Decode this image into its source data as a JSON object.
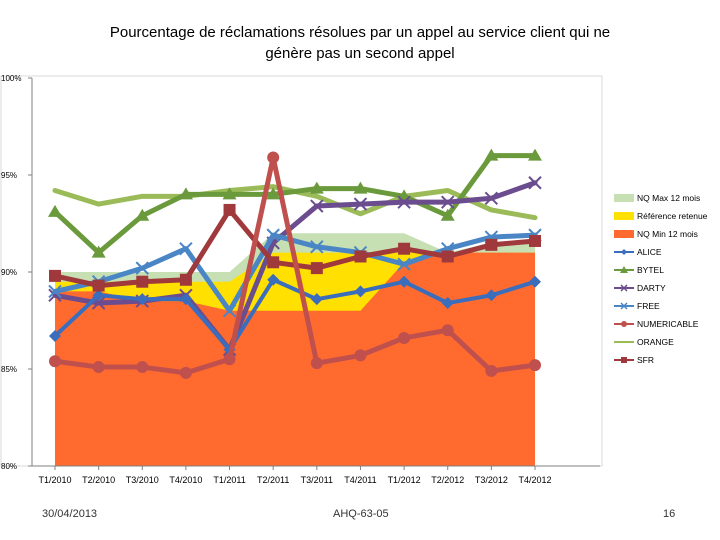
{
  "slide": {
    "footer_date": "30/04/2013",
    "footer_code": "AHQ-63-05",
    "page_number": "16"
  },
  "chart_data": {
    "type": "line",
    "title_line1": "Pourcentage de réclamations résolues par un appel au service client qui ne",
    "title_line2": "génère pas un second appel",
    "xlabel": "",
    "ylabel": "",
    "ylim": [
      80,
      100
    ],
    "y_ticks": [
      "80%",
      "85%",
      "90%",
      "95%",
      "100%"
    ],
    "y_tick_values": [
      80,
      85,
      90,
      95,
      100
    ],
    "categories": [
      "T1/2010",
      "T2/2010",
      "T3/2010",
      "T4/2010",
      "T1/2011",
      "T2/2011",
      "T3/2011",
      "T4/2011",
      "T1/2012",
      "T2/2012",
      "T3/2012",
      "T4/2012"
    ],
    "grid": false,
    "legend_position": "right",
    "areas": [
      {
        "name": "NQ Max 12 mois",
        "color": "#c6e0b4",
        "values": [
          90,
          90,
          90,
          90,
          90,
          92,
          92,
          92,
          92,
          91,
          91.5,
          91.5
        ]
      },
      {
        "name": "Référence retenue",
        "color": "#ffe000",
        "values": [
          89.5,
          89.5,
          89.5,
          89.5,
          89.5,
          91,
          91,
          91,
          91,
          91,
          91,
          91
        ]
      },
      {
        "name": "NQ Min 12 mois",
        "color": "#ff6a2f",
        "values": [
          89,
          89,
          88.5,
          88.5,
          88,
          88,
          88,
          88,
          90.5,
          91,
          91,
          91
        ]
      }
    ],
    "series": [
      {
        "name": "ALICE",
        "color": "#3a6ebd",
        "marker": "diamond",
        "values": [
          86.7,
          88.8,
          88.6,
          88.6,
          86.0,
          89.6,
          88.6,
          89.0,
          89.5,
          88.4,
          88.8,
          89.5
        ]
      },
      {
        "name": "BYTEL",
        "color": "#6a9a3c",
        "marker": "triangle",
        "values": [
          93.1,
          91.0,
          92.9,
          94.0,
          94.0,
          94.0,
          94.3,
          94.3,
          93.9,
          92.9,
          96.0,
          96.0
        ]
      },
      {
        "name": "DARTY",
        "color": "#6b4c8f",
        "marker": "x",
        "values": [
          88.8,
          88.4,
          88.5,
          88.8,
          86.0,
          91.5,
          93.4,
          93.5,
          93.6,
          93.6,
          93.8,
          94.6
        ]
      },
      {
        "name": "FREE",
        "color": "#4a86c5",
        "marker": "x",
        "values": [
          89.0,
          89.5,
          90.2,
          91.2,
          88.0,
          91.9,
          91.3,
          91.0,
          90.4,
          91.2,
          91.8,
          91.9
        ]
      },
      {
        "name": "NUMERICABLE",
        "color": "#c0504d",
        "marker": "circle",
        "values": [
          85.4,
          85.1,
          85.1,
          84.8,
          85.5,
          95.9,
          85.3,
          85.7,
          86.6,
          87.0,
          84.9,
          85.2
        ]
      },
      {
        "name": "ORANGE",
        "color": "#9bbb59",
        "marker": "none",
        "values": [
          94.2,
          93.5,
          93.9,
          93.9,
          94.2,
          94.4,
          93.9,
          93.0,
          93.9,
          94.2,
          93.2,
          92.8
        ]
      },
      {
        "name": "SFR",
        "color": "#a0393b",
        "marker": "square",
        "values": [
          89.8,
          89.3,
          89.5,
          89.6,
          93.2,
          90.5,
          90.2,
          90.8,
          91.2,
          90.8,
          91.4,
          91.6
        ]
      }
    ]
  }
}
